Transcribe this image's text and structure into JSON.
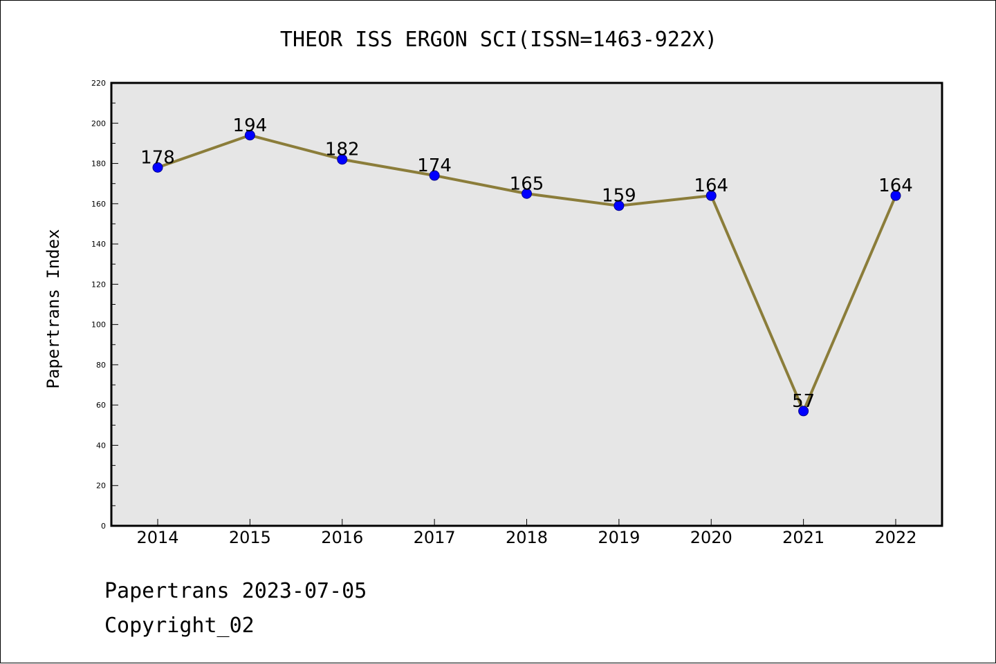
{
  "chart_data": {
    "type": "line",
    "title": "THEOR ISS ERGON SCI(ISSN=1463-922X)",
    "xlabel": "",
    "ylabel": "Papertrans Index",
    "categories": [
      "2014",
      "2015",
      "2016",
      "2017",
      "2018",
      "2019",
      "2020",
      "2021",
      "2022"
    ],
    "values": [
      178,
      194,
      182,
      174,
      165,
      159,
      164,
      57,
      164
    ],
    "ylim": [
      0,
      220
    ],
    "yticks": [
      0,
      20,
      40,
      60,
      80,
      100,
      120,
      140,
      160,
      180,
      200,
      220
    ],
    "grid": false,
    "colors": {
      "line": "#8b7d3a",
      "marker": "#0000ff",
      "plot_background": "#e6e6e6"
    }
  },
  "footer": {
    "line1": "Papertrans 2023-07-05",
    "line2": "Copyright_02"
  }
}
